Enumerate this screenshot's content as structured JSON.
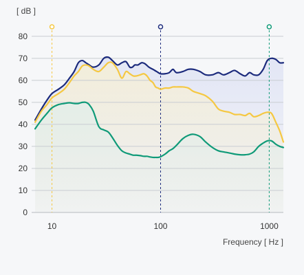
{
  "chart_data": {
    "type": "line",
    "title": "",
    "ylabel": "[ dB ]",
    "xlabel": "Frequency [ Hz ]",
    "xscale": "log",
    "xlim": [
      6.5,
      1350
    ],
    "ylim": [
      0,
      84
    ],
    "y_ticks": [
      "0",
      "10",
      "20",
      "30",
      "40",
      "50",
      "60",
      "70",
      "80"
    ],
    "x_ticks": [
      {
        "value": 10,
        "label": "10"
      },
      {
        "value": 100,
        "label": "100"
      },
      {
        "value": 1000,
        "label": "1000"
      }
    ],
    "grid": "horizontal",
    "series": [
      {
        "color": "#1b2a7c",
        "fill": "#dfe3f4",
        "x": [
          7,
          8,
          9,
          10,
          11.5,
          13,
          14.5,
          16,
          17.5,
          19,
          20.5,
          22,
          24,
          27,
          30,
          33,
          36,
          40,
          44,
          48,
          52,
          55,
          58,
          62,
          67,
          72,
          78,
          85,
          92,
          100,
          110,
          120,
          130,
          140,
          160,
          180,
          200,
          230,
          260,
          300,
          340,
          380,
          430,
          480,
          540,
          600,
          660,
          720,
          800,
          880,
          960,
          1050,
          1150,
          1250,
          1350
        ],
        "y": [
          42,
          47,
          51,
          54,
          56,
          58,
          61,
          64,
          68,
          69,
          68,
          67,
          66,
          67,
          70,
          70.5,
          69,
          67,
          68,
          68.5,
          66,
          66,
          67,
          67,
          68,
          67.5,
          66,
          65,
          64,
          63,
          63,
          63.5,
          65,
          63.5,
          64,
          65,
          65,
          64,
          62.5,
          62.5,
          63.5,
          62.5,
          63.5,
          64.5,
          63,
          62,
          63.5,
          62.5,
          62.5,
          65,
          69,
          70,
          69.5,
          68,
          68
        ]
      },
      {
        "color": "#f5c842",
        "fill": "#f6efd6",
        "x": [
          7,
          8,
          9,
          10,
          11.5,
          13,
          14.5,
          16,
          17.5,
          19,
          20.5,
          22,
          24,
          27,
          30,
          33,
          36,
          40,
          44,
          48,
          52,
          56,
          60,
          65,
          70,
          75,
          80,
          85,
          90,
          95,
          100,
          110,
          120,
          130,
          140,
          160,
          180,
          200,
          230,
          260,
          300,
          340,
          380,
          430,
          480,
          540,
          600,
          660,
          720,
          800,
          880,
          960,
          1050,
          1150,
          1250,
          1350
        ],
        "y": [
          41,
          46,
          49,
          52,
          54,
          56,
          59,
          62,
          64,
          66.5,
          67,
          66.5,
          65,
          64,
          66,
          68,
          68,
          65,
          61,
          64,
          63,
          62,
          62,
          62.5,
          63,
          62,
          60,
          59,
          57,
          56.5,
          56,
          56.5,
          56.5,
          57,
          57,
          57,
          56.5,
          55,
          54,
          53,
          50.5,
          47,
          46,
          45.5,
          44.5,
          44.5,
          44,
          45,
          43.5,
          44,
          45,
          45.5,
          45,
          41,
          37,
          32
        ]
      },
      {
        "color": "#0f9a78",
        "fill": "#e2eeea",
        "x": [
          7,
          8,
          9,
          10,
          11.5,
          13,
          14.5,
          16,
          17.5,
          19,
          20.5,
          22,
          24,
          27,
          30,
          33,
          36,
          40,
          44,
          48,
          52,
          56,
          60,
          65,
          70,
          75,
          80,
          85,
          90,
          95,
          100,
          110,
          120,
          130,
          140,
          160,
          180,
          200,
          230,
          260,
          300,
          340,
          380,
          430,
          480,
          540,
          600,
          660,
          720,
          800,
          880,
          960,
          1050,
          1150,
          1250,
          1350
        ],
        "y": [
          38,
          42,
          45,
          47.5,
          49,
          49.5,
          49.8,
          49.5,
          49.5,
          50,
          50,
          49,
          46,
          39,
          37.5,
          36.5,
          34,
          30.5,
          28,
          27,
          26.5,
          26,
          26,
          25.8,
          25.5,
          25.5,
          25.2,
          25,
          25,
          25,
          25.3,
          26.5,
          28,
          29,
          30.5,
          33.5,
          35,
          35.5,
          34.5,
          32,
          29.5,
          28,
          27.5,
          27,
          26.5,
          26.2,
          26.2,
          26.5,
          27.5,
          30,
          31.5,
          32.5,
          32.5,
          31,
          30,
          29.5
        ]
      }
    ],
    "markers": [
      {
        "x": 10,
        "color": "#f5c842"
      },
      {
        "x": 100,
        "color": "#1b2a7c"
      },
      {
        "x": 1000,
        "color": "#0f9a78"
      }
    ]
  }
}
